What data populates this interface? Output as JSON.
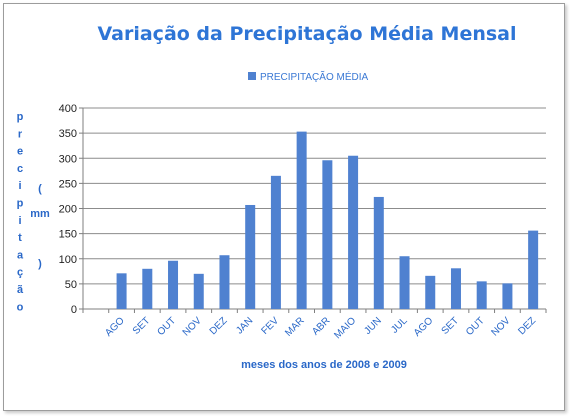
{
  "chart_data": {
    "type": "bar",
    "title": "Variação da Precipitação Média Mensal",
    "legend": {
      "label": "PRECIPITAÇÃO MÉDIA",
      "position": "top"
    },
    "xlabel": "meses dos anos de 2008 e 2009",
    "ylabel": "precipitação (mm)",
    "ylabel_chars": [
      "p",
      "r",
      "e",
      "c",
      "i",
      "p",
      "i",
      "t",
      "a",
      "ç",
      "ã",
      "o"
    ],
    "ylabel_unit_chars": [
      "(",
      "mm",
      ")"
    ],
    "ylim": [
      0,
      400
    ],
    "yticks": [
      "0",
      "50",
      "100",
      "150",
      "200",
      "250",
      "300",
      "350",
      "400"
    ],
    "grid": true,
    "color": "#4f81d0",
    "categories": [
      "AGO",
      "SET",
      "OUT",
      "NOV",
      "DEZ",
      "JAN",
      "FEV",
      "MAR",
      "ABR",
      "MAIO",
      "JUN",
      "JUL",
      "AGO",
      "SET",
      "OUT",
      "NOV",
      "DEZ"
    ],
    "series": [
      {
        "name": "PRECIPITAÇÃO MÉDIA",
        "values": [
          71,
          80,
          96,
          70,
          107,
          207,
          265,
          353,
          296,
          305,
          223,
          105,
          66,
          81,
          55,
          51,
          156
        ]
      }
    ]
  }
}
